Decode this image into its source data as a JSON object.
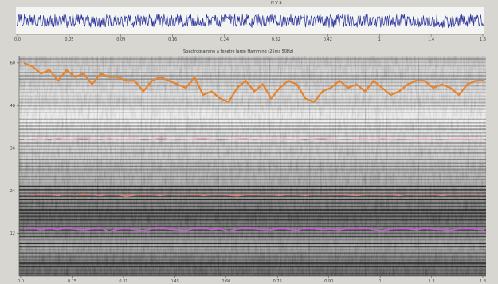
{
  "top_header_fragment": "N  V  S",
  "waveform_panel": {
    "x_ticks": [
      "0.0",
      "0.05",
      "0.09",
      "0.16",
      "0.24",
      "0.32",
      "0.42",
      "1",
      "1.4",
      "1.8"
    ]
  },
  "spectrogram_panel": {
    "title": "Spectrogramme a fenetre large  Hamming (25ms  50Hz)",
    "y_ticks": [
      "60",
      "48",
      "36",
      "24",
      "12"
    ],
    "x_ticks": [
      "0.0",
      "0.15",
      "0.31",
      "0.45",
      "0.60",
      "0.75",
      "0.90",
      "1",
      "1.3",
      "1.8"
    ]
  },
  "chart_data": {
    "type": "line",
    "title": "Spectrogramme a fenetre large  Hamming (25ms  50Hz)",
    "ylim": [
      0,
      62
    ],
    "series": [
      {
        "color": "#e8832a",
        "values": [
          60,
          59,
          57,
          58,
          55,
          58,
          56,
          57,
          54,
          57,
          56,
          56,
          55,
          55,
          52,
          55,
          56,
          55,
          54,
          53,
          56,
          51,
          52,
          50,
          49,
          53,
          55,
          52,
          54,
          50,
          53,
          55,
          54,
          50,
          49,
          52,
          53,
          55,
          53,
          54,
          52,
          55,
          53,
          51,
          52,
          54,
          55,
          55,
          53,
          54,
          53,
          51,
          54,
          55,
          55
        ]
      },
      {
        "color": "#e7a6b8",
        "values": [
          38.5,
          38.3,
          38.6,
          38.2,
          38.8,
          38.4,
          38.6,
          38.9,
          38.5,
          38.3,
          38.7,
          38.4,
          38.5,
          38.6,
          38.2,
          38.4,
          38.9,
          38.5,
          38.3,
          38.4,
          38.6,
          38.8,
          38.5,
          38.2,
          38.4,
          38.6,
          38.7,
          38.3,
          38.5,
          38.4,
          38.6,
          38.4,
          38.5,
          38.2,
          38.6,
          38.8,
          38.5,
          38.4,
          38.3,
          38.5,
          38.6,
          38.4,
          38.7,
          38.5,
          38.3,
          38.4,
          38.5,
          38.6,
          38.4,
          38.3,
          38.5,
          38.6,
          38.4,
          38.5,
          38.6
        ]
      },
      {
        "color": "#f17a64",
        "values": [
          22.9,
          22.7,
          23.0,
          22.8,
          22.6,
          22.9,
          22.7,
          23.1,
          22.8,
          22.6,
          22.9,
          22.8,
          22.4,
          22.7,
          23.0,
          22.8,
          22.6,
          22.9,
          22.7,
          22.8,
          23.0,
          22.6,
          22.8,
          22.9,
          22.7,
          22.5,
          22.8,
          23.0,
          22.7,
          22.8,
          22.6,
          22.9,
          22.8,
          22.6,
          22.9,
          22.7,
          22.8,
          23.0,
          22.7,
          22.6,
          22.8,
          22.9,
          22.7,
          22.8,
          22.6,
          22.9,
          22.7,
          22.8,
          22.9,
          22.6,
          22.8,
          22.7,
          22.9,
          22.8,
          22.7
        ]
      },
      {
        "color": "#c85ed6",
        "values": [
          13.2,
          13.5,
          13.0,
          13.4,
          13.1,
          13.6,
          13.2,
          13.0,
          13.3,
          13.5,
          12.6,
          13.2,
          13.4,
          13.1,
          12.8,
          13.3,
          13.6,
          13.2,
          13.0,
          12.9,
          13.4,
          13.5,
          13.1,
          13.3,
          12.7,
          13.2,
          13.6,
          13.3,
          13.1,
          13.0,
          13.4,
          13.2,
          12.9,
          13.5,
          13.3,
          13.1,
          13.2,
          13.0,
          13.4,
          13.3,
          13.5,
          13.1,
          12.8,
          13.2,
          13.4,
          13.3,
          13.0,
          13.5,
          13.2,
          13.1,
          12.9,
          13.3,
          13.4,
          13.2,
          13.0
        ]
      }
    ]
  }
}
